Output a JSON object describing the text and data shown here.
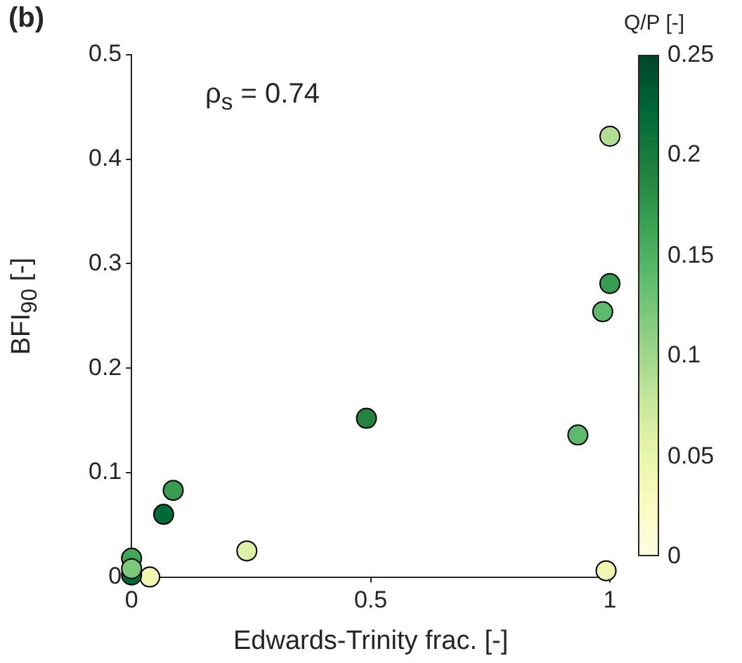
{
  "chart_data": {
    "type": "scatter",
    "title": "(b)",
    "xlabel": "Edwards-Trinity frac. [-]",
    "ylabel": "BFI$_{90}$ [-]",
    "clabel": "Q/P [-]",
    "annotations": [
      "ρ$_{s}$ = 0.74"
    ],
    "x": [
      1.0,
      1.0,
      0.985,
      0.933,
      0.491,
      0.087,
      0.067,
      0.241,
      0.992,
      0.038,
      0,
      0,
      0
    ],
    "values": [
      0.422,
      0.281,
      0.254,
      0.136,
      0.152,
      0.083,
      0.06,
      0.025,
      0.006,
      0.0,
      0.018,
      0.002,
      0.008
    ],
    "cvalues": [
      0.09,
      0.17,
      0.14,
      0.14,
      0.19,
      0.17,
      0.22,
      0.06,
      0.04,
      0.04,
      0.16,
      0.22,
      0.12
    ],
    "xlim": [
      0,
      1
    ],
    "xticks": [
      0,
      0.5,
      1
    ],
    "ylim": [
      0,
      0.5
    ],
    "yticks": [
      0,
      0.1,
      0.2,
      0.3,
      0.4,
      0.5
    ],
    "clim": [
      0,
      0.25
    ],
    "cticks": [
      0,
      0.05,
      0.1,
      0.15,
      0.2,
      0.25
    ],
    "grid": false,
    "legend": false,
    "marker": "circle"
  }
}
